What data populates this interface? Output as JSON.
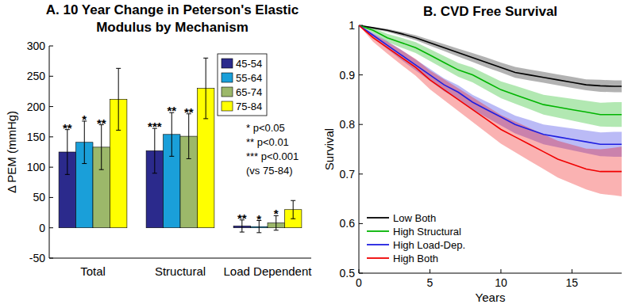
{
  "chart_data": [
    {
      "type": "bar",
      "title": "A. 10 Year Change in Peterson's Elastic Modulus by Mechanism",
      "y_label": "Δ PEM (mmHg)",
      "categories": [
        "Total",
        "Structural",
        "Load Dependent"
      ],
      "series": [
        {
          "name": "45-54",
          "color": "#2b2a8c",
          "values": [
            125,
            127,
            3
          ],
          "errors": [
            37,
            37,
            10
          ],
          "significance": [
            "**",
            "***",
            "**"
          ]
        },
        {
          "name": "55-64",
          "color": "#1a9fd9",
          "values": [
            141,
            154,
            2
          ],
          "errors": [
            35,
            36,
            10
          ],
          "significance": [
            "*",
            "**",
            "*"
          ]
        },
        {
          "name": "65-74",
          "color": "#9cb86a",
          "values": [
            133,
            151,
            8
          ],
          "errors": [
            37,
            37,
            12
          ],
          "significance": [
            "**",
            "**",
            "*"
          ]
        },
        {
          "name": "75-84",
          "color": "#ffff00",
          "values": [
            212,
            230,
            30
          ],
          "errors": [
            51,
            50,
            15
          ],
          "significance": [
            null,
            null,
            null
          ]
        }
      ],
      "ylim": [
        -50,
        300
      ],
      "yticks": [
        -50,
        0,
        50,
        100,
        150,
        200,
        250,
        300
      ],
      "legend": "upper right",
      "annotations": [
        "* p<0.05",
        "** p<0.01",
        "*** p<0.001",
        "(vs 75-84)"
      ],
      "grid": false
    },
    {
      "type": "line",
      "title": "B. CVD Free Survival",
      "x_label": "Years",
      "y_label": "Survival",
      "x": [
        0,
        1,
        2,
        3,
        4,
        5,
        6,
        7,
        8,
        9,
        10,
        11,
        12,
        13,
        14,
        15,
        16,
        17,
        18,
        18.5
      ],
      "series": [
        {
          "name": "Low Both",
          "color": "#000000",
          "values": [
            1,
            0.995,
            0.99,
            0.983,
            0.975,
            0.965,
            0.955,
            0.945,
            0.935,
            0.925,
            0.915,
            0.905,
            0.9,
            0.895,
            0.89,
            0.885,
            0.88,
            0.878,
            0.877,
            0.877
          ],
          "lower": [
            1,
            0.993,
            0.987,
            0.979,
            0.97,
            0.959,
            0.948,
            0.937,
            0.926,
            0.915,
            0.905,
            0.894,
            0.889,
            0.884,
            0.879,
            0.874,
            0.869,
            0.866,
            0.865,
            0.865
          ],
          "upper": [
            1,
            0.997,
            0.993,
            0.987,
            0.98,
            0.971,
            0.962,
            0.953,
            0.944,
            0.935,
            0.925,
            0.916,
            0.911,
            0.906,
            0.901,
            0.896,
            0.891,
            0.89,
            0.889,
            0.889
          ]
        },
        {
          "name": "High Structural",
          "color": "#00b400",
          "values": [
            1,
            0.99,
            0.975,
            0.965,
            0.955,
            0.94,
            0.925,
            0.91,
            0.9,
            0.885,
            0.87,
            0.86,
            0.85,
            0.84,
            0.835,
            0.83,
            0.825,
            0.82,
            0.82,
            0.82
          ],
          "lower": [
            1,
            0.985,
            0.967,
            0.955,
            0.944,
            0.928,
            0.912,
            0.896,
            0.885,
            0.869,
            0.853,
            0.842,
            0.831,
            0.82,
            0.814,
            0.808,
            0.802,
            0.796,
            0.795,
            0.795
          ],
          "upper": [
            1,
            0.995,
            0.983,
            0.975,
            0.966,
            0.952,
            0.938,
            0.924,
            0.915,
            0.901,
            0.887,
            0.878,
            0.869,
            0.86,
            0.856,
            0.852,
            0.848,
            0.844,
            0.845,
            0.845
          ]
        },
        {
          "name": "High Load-Dep.",
          "color": "#1f1fe0",
          "values": [
            1,
            0.98,
            0.96,
            0.94,
            0.92,
            0.9,
            0.88,
            0.865,
            0.845,
            0.83,
            0.815,
            0.8,
            0.79,
            0.78,
            0.775,
            0.77,
            0.765,
            0.76,
            0.76,
            0.76
          ],
          "lower": [
            1,
            0.975,
            0.952,
            0.93,
            0.909,
            0.888,
            0.867,
            0.851,
            0.83,
            0.814,
            0.798,
            0.782,
            0.771,
            0.76,
            0.754,
            0.748,
            0.742,
            0.736,
            0.735,
            0.735
          ],
          "upper": [
            1,
            0.985,
            0.968,
            0.95,
            0.931,
            0.912,
            0.893,
            0.879,
            0.86,
            0.846,
            0.832,
            0.818,
            0.809,
            0.8,
            0.796,
            0.792,
            0.788,
            0.784,
            0.785,
            0.785
          ]
        },
        {
          "name": "High Both",
          "color": "#f00000",
          "values": [
            1,
            0.975,
            0.955,
            0.935,
            0.915,
            0.89,
            0.87,
            0.85,
            0.83,
            0.81,
            0.79,
            0.775,
            0.76,
            0.745,
            0.73,
            0.72,
            0.71,
            0.705,
            0.705,
            0.705
          ],
          "lower": [
            1,
            0.967,
            0.943,
            0.92,
            0.898,
            0.871,
            0.849,
            0.827,
            0.805,
            0.783,
            0.761,
            0.744,
            0.727,
            0.71,
            0.693,
            0.681,
            0.669,
            0.66,
            0.657,
            0.655
          ],
          "upper": [
            1,
            0.983,
            0.967,
            0.95,
            0.932,
            0.909,
            0.891,
            0.873,
            0.855,
            0.837,
            0.819,
            0.806,
            0.793,
            0.78,
            0.767,
            0.759,
            0.751,
            0.75,
            0.753,
            0.755
          ]
        }
      ],
      "xlim": [
        0,
        18.5
      ],
      "xticks": [
        0,
        5,
        10,
        15
      ],
      "ylim": [
        0.5,
        1
      ],
      "yticks": [
        0.5,
        0.6,
        0.7,
        0.8,
        0.9,
        1
      ],
      "legend": "lower left",
      "grid": false
    }
  ]
}
